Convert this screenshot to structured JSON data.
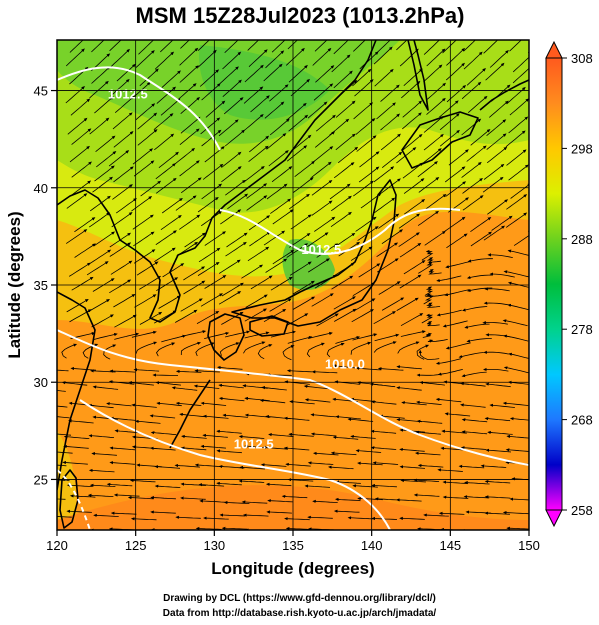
{
  "title": "MSM 15Z28Jul2023 (1013.2hPa)",
  "xlabel": "Longitude (degrees)",
  "ylabel": "Latitude  (degrees)",
  "credits": {
    "line1": "Drawing by DCL (https://www.gfd-dennou.org/library/dcl/)",
    "line2": "Data from http://database.rish.kyoto-u.ac.jp/arch/jmadata/"
  },
  "map": {
    "lon_range": [
      120,
      150
    ],
    "lat_range": [
      22.4,
      47.6
    ],
    "x_ticks": [
      "120",
      "125",
      "130",
      "135",
      "140",
      "145",
      "150"
    ],
    "y_ticks": [
      "25",
      "30",
      "35",
      "40",
      "45"
    ]
  },
  "colorbar": {
    "range": [
      258,
      308
    ],
    "tick_labels": [
      "258",
      "268",
      "278",
      "288",
      "298",
      "308"
    ],
    "colors": [
      "#ff00ff",
      "#0000c8",
      "#1e78ff",
      "#00c8ff",
      "#00d28c",
      "#00be3c",
      "#6ed21e",
      "#dcf000",
      "#ffc800",
      "#ff8c1e",
      "#ff5a1e"
    ]
  },
  "isobars": [
    {
      "label": "1012.5",
      "lon": 136.8,
      "lat": 36.6
    },
    {
      "label": "1010.0",
      "lon": 138.3,
      "lat": 30.7
    },
    {
      "label": "1012.5",
      "lon": 132.5,
      "lat": 26.6
    },
    {
      "label": "1012.5",
      "lon": 124.5,
      "lat": 44.6
    }
  ],
  "colors": {
    "land_outline": "#000000",
    "isobar": "#ffffff",
    "grid": "#000000"
  }
}
